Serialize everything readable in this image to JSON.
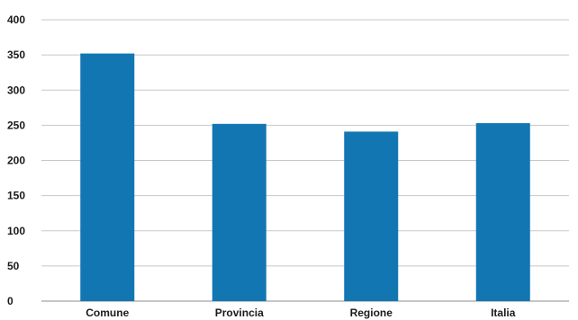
{
  "chart_data": {
    "type": "bar",
    "categories": [
      "Comune",
      "Provincia",
      "Regione",
      "Italia"
    ],
    "values": [
      352,
      252,
      241,
      253
    ],
    "title": "",
    "xlabel": "",
    "ylabel": "",
    "ylim": [
      0,
      400
    ],
    "yticks": [
      0,
      50,
      100,
      150,
      200,
      250,
      300,
      350,
      400
    ],
    "grid": true,
    "legend": "none",
    "bar_color": "#1276b2"
  }
}
